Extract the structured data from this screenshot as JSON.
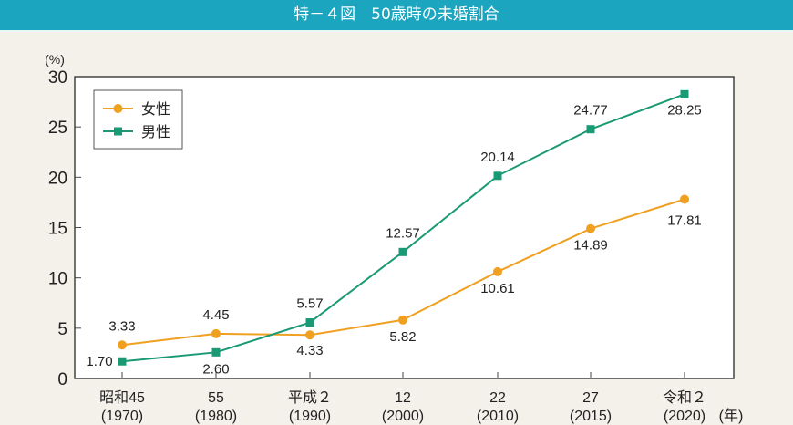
{
  "title": "特－４図　50歳時の未婚割合",
  "chart_data": {
    "type": "line",
    "title": "特－４図　50歳時の未婚割合",
    "ylabel": "(%)",
    "xlabel": "(年)",
    "ylim": [
      0,
      30
    ],
    "yticks": [
      0,
      5,
      10,
      15,
      20,
      25,
      30
    ],
    "categories": [
      [
        "昭和45",
        "(1970)"
      ],
      [
        "55",
        "(1980)"
      ],
      [
        "平成２",
        "(1990)"
      ],
      [
        "12",
        "(2000)"
      ],
      [
        "22",
        "(2010)"
      ],
      [
        "27",
        "(2015)"
      ],
      [
        "令和２",
        "(2020)"
      ]
    ],
    "legend_position": "top-left",
    "grid": false,
    "series": [
      {
        "name": "女性",
        "marker": "circle",
        "color": "#f0a020",
        "values": [
          3.33,
          4.45,
          4.33,
          5.82,
          10.61,
          14.89,
          17.81
        ],
        "labels": [
          "3.33",
          "4.45",
          "4.33",
          "5.82",
          "10.61",
          "14.89",
          "17.81"
        ]
      },
      {
        "name": "男性",
        "marker": "square",
        "color": "#1a9a74",
        "values": [
          1.7,
          2.6,
          5.57,
          12.57,
          20.14,
          24.77,
          28.25
        ],
        "labels": [
          "1.70",
          "2.60",
          "5.57",
          "12.57",
          "20.14",
          "24.77",
          "28.25"
        ]
      }
    ]
  }
}
